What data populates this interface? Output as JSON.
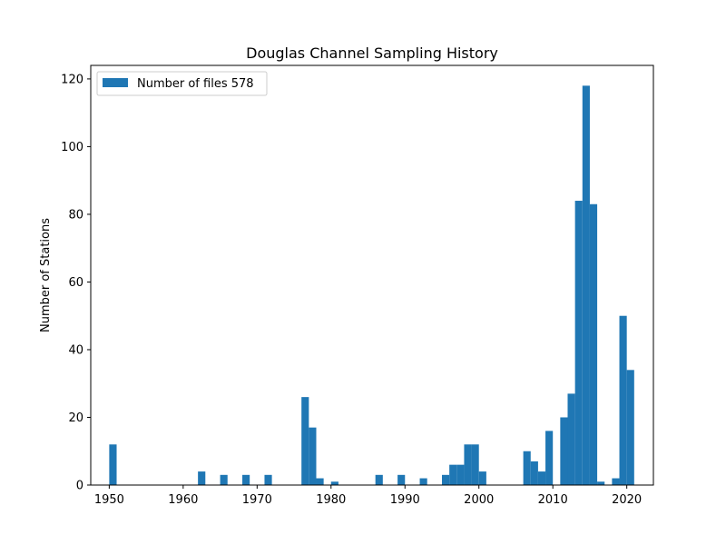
{
  "chart_data": {
    "type": "bar",
    "title": "Douglas Channel Sampling History",
    "xlabel": "",
    "ylabel": "Number of Stations",
    "xlim": [
      1947.5,
      2023.6
    ],
    "ylim": [
      0,
      124
    ],
    "xticks": [
      1950,
      1960,
      1970,
      1980,
      1990,
      2000,
      2010,
      2020
    ],
    "yticks": [
      0,
      20,
      40,
      60,
      80,
      100,
      120
    ],
    "bin_width": 1.0,
    "grid": false,
    "legend_placement": "top-left",
    "bar_color": "#1f77b4",
    "series": [
      {
        "name": "Number of files 578",
        "values": [
          {
            "x": 1950.5,
            "y": 12
          },
          {
            "x": 1962.5,
            "y": 4
          },
          {
            "x": 1965.5,
            "y": 3
          },
          {
            "x": 1968.5,
            "y": 3
          },
          {
            "x": 1971.5,
            "y": 3
          },
          {
            "x": 1976.5,
            "y": 26
          },
          {
            "x": 1977.5,
            "y": 17
          },
          {
            "x": 1978.5,
            "y": 2
          },
          {
            "x": 1980.5,
            "y": 1
          },
          {
            "x": 1986.5,
            "y": 3
          },
          {
            "x": 1989.5,
            "y": 3
          },
          {
            "x": 1992.5,
            "y": 2
          },
          {
            "x": 1995.5,
            "y": 3
          },
          {
            "x": 1996.5,
            "y": 6
          },
          {
            "x": 1997.5,
            "y": 6
          },
          {
            "x": 1998.5,
            "y": 12
          },
          {
            "x": 1999.5,
            "y": 12
          },
          {
            "x": 2000.5,
            "y": 4
          },
          {
            "x": 2006.5,
            "y": 10
          },
          {
            "x": 2007.5,
            "y": 7
          },
          {
            "x": 2008.5,
            "y": 4
          },
          {
            "x": 2009.5,
            "y": 16
          },
          {
            "x": 2011.5,
            "y": 20
          },
          {
            "x": 2012.5,
            "y": 27
          },
          {
            "x": 2013.5,
            "y": 84
          },
          {
            "x": 2014.5,
            "y": 118
          },
          {
            "x": 2015.5,
            "y": 83
          },
          {
            "x": 2016.5,
            "y": 1
          },
          {
            "x": 2018.5,
            "y": 2
          },
          {
            "x": 2019.5,
            "y": 50
          },
          {
            "x": 2020.5,
            "y": 34
          }
        ]
      }
    ]
  }
}
